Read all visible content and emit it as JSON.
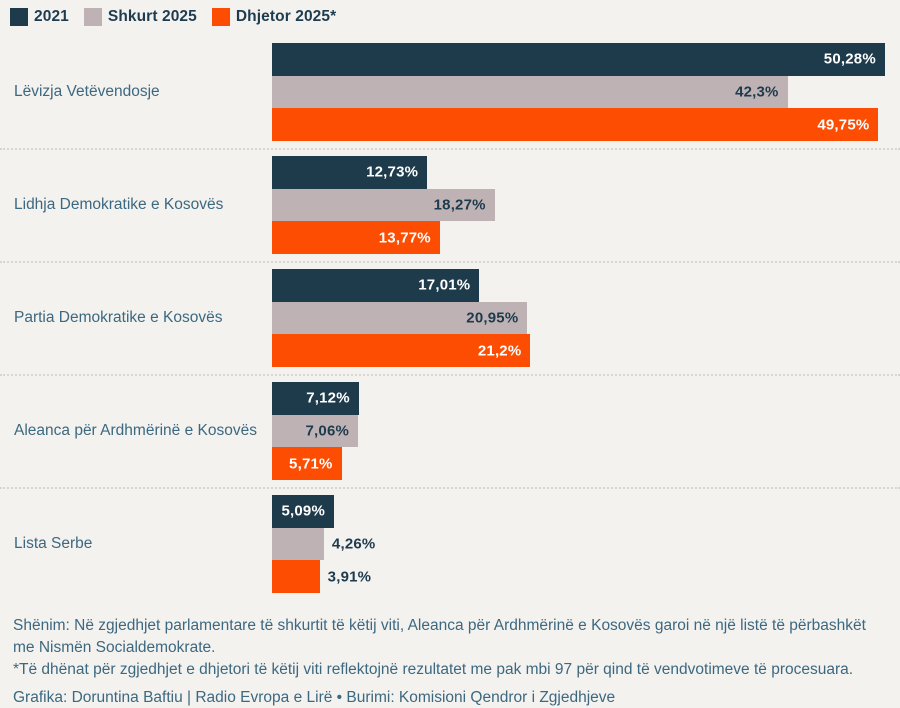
{
  "legend": {
    "items": [
      {
        "label": "2021",
        "color": "#1e3b4c"
      },
      {
        "label": "Shkurt 2025",
        "color": "#bfb2b5"
      },
      {
        "label": "Dhjetor 2025*",
        "color": "#fc4d02"
      }
    ]
  },
  "chart_data": {
    "type": "bar",
    "orientation": "horizontal",
    "title": "",
    "xlabel": "",
    "ylabel": "",
    "xlim": [
      0,
      50.7
    ],
    "grid": false,
    "legend_position": "top-left",
    "value_suffix": "%",
    "categories": [
      "Lëvizja Vetëvendosje",
      "Lidhja Demokratike e Kosovës",
      "Partia Demokratike e Kosovës",
      "Aleanca për Ardhmërinë e Kosovës",
      "Lista Serbe"
    ],
    "series": [
      {
        "name": "2021",
        "color": "#1e3b4c",
        "inside_label_color": "#ffffff",
        "values": [
          50.28,
          12.73,
          17.01,
          7.12,
          5.09
        ],
        "labels": [
          "50,28%",
          "12,73%",
          "17,01%",
          "7,12%",
          "5,09%"
        ]
      },
      {
        "name": "Shkurt 2025",
        "color": "#bfb2b5",
        "inside_label_color": "#1d3b4c",
        "values": [
          42.3,
          18.27,
          20.95,
          7.06,
          4.26
        ],
        "labels": [
          "42,3%",
          "18,27%",
          "20,95%",
          "7,06%",
          "4,26%"
        ]
      },
      {
        "name": "Dhjetor 2025*",
        "color": "#fc4d02",
        "inside_label_color": "#ffffff",
        "values": [
          49.75,
          13.77,
          21.2,
          5.71,
          3.91
        ],
        "labels": [
          "49,75%",
          "13,77%",
          "21,2%",
          "5,71%",
          "3,91%"
        ]
      }
    ],
    "inside_label_min_value": 5
  },
  "footer": {
    "note": "Shënim: Në zgjedhjet parlamentare të shkurtit të këtij viti, Aleanca për Ardhmërinë e Kosovës garoi në një listë të përbashkët me Nismën Socialdemokrate.",
    "asterisk_note": "*Të dhënat për zgjedhjet e dhjetori të këtij viti reflektojnë rezultatet me pak mbi 97 për qind të vendvotimeve të procesuara.",
    "credits": "Grafika: Doruntina Baftiu | Radio Evropa e Lirë • Burimi: Komisioni Qendror i Zgjedhjeve"
  },
  "colors": {
    "background": "#f4f2ef",
    "navy": "#1e3b4c",
    "mauve": "#bfb2b5",
    "orange": "#fc4d02",
    "text_steel_blue": "#3c6880",
    "legend_text": "#1d3c50",
    "separator": "#d9d5d1"
  }
}
